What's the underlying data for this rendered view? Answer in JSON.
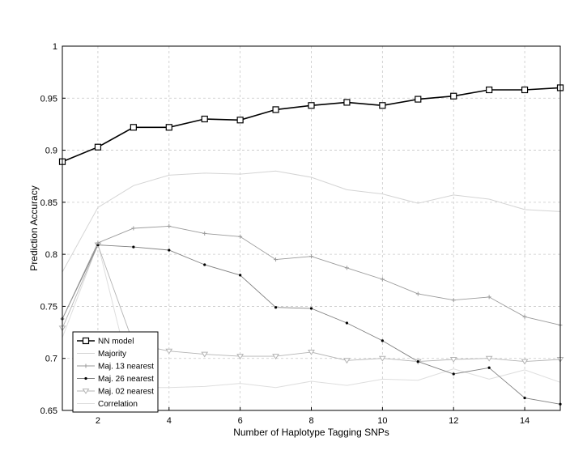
{
  "chart_data": {
    "type": "line",
    "title": "",
    "xlabel": "Number of Haplotype Tagging SNPs",
    "ylabel": "Prediction Accuracy",
    "xlim": [
      1,
      15
    ],
    "ylim": [
      0.65,
      1.0
    ],
    "xticks": [
      "2",
      "4",
      "6",
      "8",
      "10",
      "12",
      "14"
    ],
    "yticks": [
      "0.65",
      "0.7",
      "0.75",
      "0.8",
      "0.85",
      "0.9",
      "0.95",
      "1"
    ],
    "grid": true,
    "legend_position": "bottom-left",
    "x": [
      1,
      2,
      3,
      4,
      5,
      6,
      7,
      8,
      9,
      10,
      11,
      12,
      13,
      14,
      15
    ],
    "series": [
      {
        "name": "NN model",
        "color": "#000000",
        "marker": "square",
        "width": 1.6,
        "values": [
          0.889,
          0.903,
          0.922,
          0.922,
          0.93,
          0.929,
          0.939,
          0.943,
          0.946,
          0.943,
          0.949,
          0.952,
          0.958,
          0.958,
          0.96
        ]
      },
      {
        "name": "Majority",
        "color": "#d4d4d4",
        "marker": "none",
        "width": 1.0,
        "values": [
          0.783,
          0.845,
          0.866,
          0.876,
          0.878,
          0.877,
          0.88,
          0.874,
          0.862,
          0.858,
          0.849,
          0.857,
          0.853,
          0.843,
          0.841
        ]
      },
      {
        "name": "Maj. 13 nearest",
        "color": "#9a9a9a",
        "marker": "plus",
        "width": 0.9,
        "values": [
          0.738,
          0.811,
          0.825,
          0.827,
          0.82,
          0.817,
          0.795,
          0.798,
          0.787,
          0.776,
          0.762,
          0.756,
          0.759,
          0.74,
          0.732
        ]
      },
      {
        "name": "Maj. 26 nearest",
        "color": "#808080",
        "marker": "dot",
        "width": 0.9,
        "values": [
          0.738,
          0.809,
          0.807,
          0.804,
          0.79,
          0.78,
          0.749,
          0.748,
          0.734,
          0.717,
          0.697,
          0.685,
          0.691,
          0.662,
          0.656
        ]
      },
      {
        "name": "Maj. 02 nearest",
        "color": "#b4b4b4",
        "marker": "triangle-down",
        "width": 0.9,
        "values": [
          0.729,
          0.809,
          0.714,
          0.707,
          0.704,
          0.702,
          0.702,
          0.706,
          0.698,
          0.7,
          0.697,
          0.699,
          0.7,
          0.697,
          0.699
        ]
      },
      {
        "name": "Correlation",
        "color": "#dedede",
        "marker": "none",
        "width": 1.0,
        "values": [
          0.72,
          0.81,
          0.672,
          0.672,
          0.673,
          0.676,
          0.672,
          0.678,
          0.674,
          0.68,
          0.679,
          0.69,
          0.68,
          0.689,
          0.677
        ]
      }
    ]
  }
}
